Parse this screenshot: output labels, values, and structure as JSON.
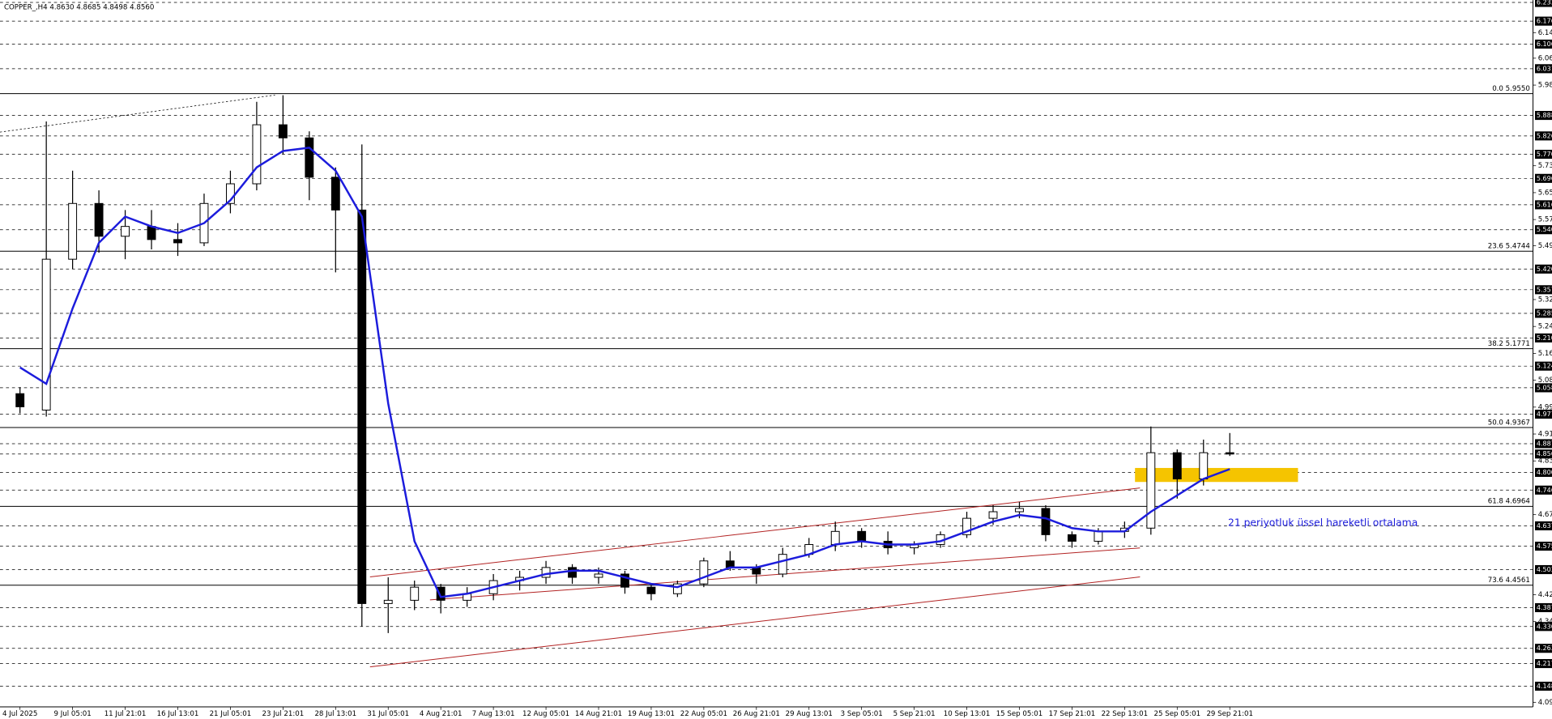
{
  "chart_data": {
    "type": "candlestick",
    "title": "COPPER_,H4  4.8630 4.8685 4.8498 4.8560",
    "annotation": "21 periyotluk üssel hareketli ortalama",
    "categories": [
      "4 Jul 2025",
      null,
      "9 Jul 05:01",
      null,
      "11 Jul 21:01",
      null,
      "16 Jul 13:01",
      null,
      "21 Jul 05:01",
      null,
      "23 Jul 21:01",
      null,
      "28 Jul 13:01",
      null,
      "31 Jul 05:01",
      null,
      "4 Aug 21:01",
      null,
      "7 Aug 13:01",
      null,
      "12 Aug 05:01",
      null,
      "14 Aug 21:01",
      null,
      "19 Aug 13:01",
      null,
      "22 Aug 05:01",
      null,
      "26 Aug 21:01",
      null,
      "29 Aug 13:01",
      null,
      "3 Sep 05:01",
      null,
      "5 Sep 21:01",
      null,
      "10 Sep 13:01",
      null,
      "15 Sep 05:01",
      null,
      "17 Sep 21:01",
      null,
      "22 Sep 13:01",
      null,
      "25 Sep 05:01",
      null,
      "29 Sep 21:01"
    ],
    "open": [
      5.04,
      4.99,
      5.45,
      5.62,
      5.52,
      5.55,
      5.51,
      5.5,
      5.62,
      5.68,
      5.86,
      5.82,
      5.7,
      5.6,
      4.4,
      4.41,
      4.45,
      4.41,
      4.43,
      4.47,
      4.48,
      4.51,
      4.48,
      4.49,
      4.45,
      4.43,
      4.46,
      4.53,
      4.51,
      4.49,
      4.55,
      4.58,
      4.62,
      4.59,
      4.57,
      4.58,
      4.61,
      4.66,
      4.68,
      4.69,
      4.61,
      4.59,
      4.62,
      4.63,
      4.86,
      4.78,
      4.86
    ],
    "high": [
      5.06,
      5.87,
      5.72,
      5.66,
      5.6,
      5.6,
      5.56,
      5.65,
      5.72,
      5.93,
      5.95,
      5.84,
      5.73,
      5.8,
      4.48,
      4.47,
      4.46,
      4.45,
      4.49,
      4.5,
      4.53,
      4.52,
      4.51,
      4.5,
      4.46,
      4.47,
      4.54,
      4.56,
      4.52,
      4.57,
      4.6,
      4.65,
      4.63,
      4.62,
      4.59,
      4.62,
      4.68,
      4.7,
      4.71,
      4.7,
      4.62,
      4.63,
      4.65,
      4.94,
      4.87,
      4.9,
      4.92
    ],
    "low": [
      4.98,
      4.97,
      5.42,
      5.47,
      5.45,
      5.48,
      5.46,
      5.49,
      5.59,
      5.66,
      5.77,
      5.63,
      5.41,
      4.33,
      4.31,
      4.38,
      4.37,
      4.39,
      4.41,
      4.44,
      4.46,
      4.46,
      4.46,
      4.43,
      4.41,
      4.42,
      4.45,
      4.5,
      4.46,
      4.48,
      4.54,
      4.56,
      4.57,
      4.55,
      4.55,
      4.57,
      4.6,
      4.64,
      4.66,
      4.59,
      4.57,
      4.58,
      4.6,
      4.61,
      4.72,
      4.76,
      4.85
    ],
    "close": [
      5.0,
      5.45,
      5.62,
      5.52,
      5.55,
      5.51,
      5.5,
      5.62,
      5.68,
      5.86,
      5.82,
      5.7,
      5.6,
      4.4,
      4.41,
      4.45,
      4.41,
      4.43,
      4.47,
      4.48,
      4.51,
      4.48,
      4.49,
      4.45,
      4.43,
      4.46,
      4.53,
      4.51,
      4.49,
      4.55,
      4.58,
      4.62,
      4.59,
      4.57,
      4.58,
      4.61,
      4.66,
      4.68,
      4.69,
      4.61,
      4.59,
      4.62,
      4.63,
      4.86,
      4.78,
      4.86,
      4.856
    ],
    "ema": {
      "color": "#1c1cdc",
      "values": [
        5.12,
        5.07,
        5.3,
        5.5,
        5.58,
        5.55,
        5.53,
        5.56,
        5.63,
        5.73,
        5.78,
        5.79,
        5.72,
        5.58,
        5.01,
        4.59,
        4.42,
        4.43,
        4.45,
        4.47,
        4.49,
        4.5,
        4.5,
        4.48,
        4.46,
        4.45,
        4.48,
        4.51,
        4.51,
        4.53,
        4.55,
        4.58,
        4.59,
        4.58,
        4.58,
        4.59,
        4.62,
        4.65,
        4.67,
        4.66,
        4.63,
        4.62,
        4.62,
        4.68,
        4.73,
        4.78,
        4.81
      ]
    },
    "ylim": [
      4.085,
      6.24
    ],
    "yticks": [
      {
        "value": 6.141,
        "label": "6.1410"
      },
      {
        "value": 6.063,
        "label": "6.0630"
      },
      {
        "value": 5.981,
        "label": "5.9810"
      },
      {
        "value": 5.735,
        "label": "5.7350"
      },
      {
        "value": 5.653,
        "label": "5.6530"
      },
      {
        "value": 5.571,
        "label": "5.5710"
      },
      {
        "value": 5.491,
        "label": "5.4910"
      },
      {
        "value": 5.327,
        "label": "5.3270"
      },
      {
        "value": 5.245,
        "label": "5.2450"
      },
      {
        "value": 5.163,
        "label": "5.1630"
      },
      {
        "value": 5.081,
        "label": "5.0810"
      },
      {
        "value": 4.999,
        "label": "4.9990"
      },
      {
        "value": 4.917,
        "label": "4.9170"
      },
      {
        "value": 4.835,
        "label": "4.8350"
      },
      {
        "value": 4.671,
        "label": "4.6710"
      },
      {
        "value": 4.427,
        "label": "4.4270"
      },
      {
        "value": 4.345,
        "label": "4.3450"
      },
      {
        "value": 4.099,
        "label": "4.0990"
      }
    ],
    "price_levels": [
      {
        "value": 6.233,
        "label": "6.2330"
      },
      {
        "value": 6.176,
        "label": "6.1760"
      },
      {
        "value": 6.106,
        "label": "6.1060"
      },
      {
        "value": 6.031,
        "label": "6.0310"
      },
      {
        "value": 5.8885,
        "label": "5.8885"
      },
      {
        "value": 5.826,
        "label": "5.8260"
      },
      {
        "value": 5.77,
        "label": "5.7700"
      },
      {
        "value": 5.6965,
        "label": "5.6965"
      },
      {
        "value": 5.616,
        "label": "5.6160"
      },
      {
        "value": 5.54,
        "label": "5.5400"
      },
      {
        "value": 5.42,
        "label": "5.4200"
      },
      {
        "value": 5.357,
        "label": "5.3570"
      },
      {
        "value": 5.285,
        "label": "5.2850"
      },
      {
        "value": 5.21,
        "label": "5.2100"
      },
      {
        "value": 5.124,
        "label": "5.1240"
      },
      {
        "value": 5.058,
        "label": "5.0580"
      },
      {
        "value": 4.9775,
        "label": "4.9775"
      },
      {
        "value": 4.8875,
        "label": "4.8875"
      },
      {
        "value": 4.856,
        "label": "4.8560"
      },
      {
        "value": 4.8,
        "label": "4.8000"
      },
      {
        "value": 4.746,
        "label": "4.7460"
      },
      {
        "value": 4.637,
        "label": "4.6370"
      },
      {
        "value": 4.575,
        "label": "4.5750"
      },
      {
        "value": 4.5035,
        "label": "4.5035"
      },
      {
        "value": 4.3875,
        "label": "4.3875"
      },
      {
        "value": 4.33,
        "label": "4.3300"
      },
      {
        "value": 4.2635,
        "label": "4.2635"
      },
      {
        "value": 4.217,
        "label": "4.2170"
      },
      {
        "value": 4.148,
        "label": "4.1480"
      }
    ],
    "fib_levels": [
      {
        "value": 5.955,
        "label": "0.0 5.9550"
      },
      {
        "value": 5.4744,
        "label": "23.6 5.4744"
      },
      {
        "value": 5.1771,
        "label": "38.2 5.1771"
      },
      {
        "value": 4.9367,
        "label": "50.0 4.9367"
      },
      {
        "value": 4.6964,
        "label": "61.8 4.6964"
      },
      {
        "value": 4.4561,
        "label": "73.6 4.4561"
      }
    ]
  }
}
